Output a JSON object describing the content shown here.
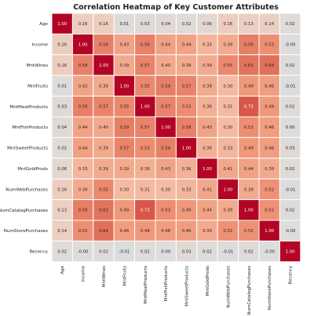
{
  "chart_data": {
    "type": "heatmap",
    "title": "Correlation Heatmap of Key Customer Attributes",
    "labels": [
      "Age",
      "Income",
      "MntWines",
      "MntFruits",
      "MntMeatProducts",
      "MntFishProducts",
      "MntSweetProducts",
      "MntGoldProds",
      "NumWebPurchases",
      "NumCatalogPurchases",
      "NumStorePurchases",
      "Recency"
    ],
    "values": [
      [
        1.0,
        0.16,
        0.16,
        0.01,
        0.03,
        0.04,
        0.02,
        0.06,
        0.16,
        0.13,
        0.14,
        0.02
      ],
      [
        0.16,
        1.0,
        0.58,
        0.43,
        0.58,
        0.44,
        0.44,
        0.33,
        0.39,
        0.59,
        0.53,
        -0.0
      ],
      [
        0.16,
        0.58,
        1.0,
        0.39,
        0.57,
        0.4,
        0.39,
        0.39,
        0.55,
        0.63,
        0.64,
        0.02
      ],
      [
        0.01,
        0.43,
        0.39,
        1.0,
        0.55,
        0.59,
        0.57,
        0.39,
        0.3,
        0.49,
        0.46,
        -0.01
      ],
      [
        0.03,
        0.58,
        0.57,
        0.55,
        1.0,
        0.57,
        0.53,
        0.36,
        0.31,
        0.73,
        0.49,
        0.02
      ],
      [
        0.04,
        0.44,
        0.4,
        0.59,
        0.57,
        1.0,
        0.58,
        0.43,
        0.3,
        0.53,
        0.46,
        0.0
      ],
      [
        0.02,
        0.44,
        0.39,
        0.57,
        0.53,
        0.58,
        1.0,
        0.36,
        0.33,
        0.49,
        0.46,
        0.03
      ],
      [
        0.06,
        0.33,
        0.39,
        0.39,
        0.36,
        0.43,
        0.36,
        1.0,
        0.41,
        0.44,
        0.39,
        0.02
      ],
      [
        0.16,
        0.39,
        0.55,
        0.3,
        0.31,
        0.3,
        0.33,
        0.41,
        1.0,
        0.39,
        0.52,
        -0.01
      ],
      [
        0.13,
        0.59,
        0.63,
        0.49,
        0.73,
        0.53,
        0.49,
        0.44,
        0.39,
        1.0,
        0.52,
        0.02
      ],
      [
        0.14,
        0.53,
        0.64,
        0.46,
        0.49,
        0.46,
        0.46,
        0.39,
        0.52,
        0.52,
        1.0,
        -0.0
      ],
      [
        0.02,
        -0.0,
        0.02,
        -0.01,
        0.02,
        0.0,
        0.03,
        0.02,
        -0.01,
        0.02,
        -0.0,
        1.0
      ]
    ],
    "value_labels": [
      [
        "1.00",
        "0.16",
        "0.16",
        "0.01",
        "0.03",
        "0.04",
        "0.02",
        "0.06",
        "0.16",
        "0.13",
        "0.14",
        "0.02"
      ],
      [
        "0.16",
        "1.00",
        "0.58",
        "0.43",
        "0.58",
        "0.44",
        "0.44",
        "0.33",
        "0.39",
        "0.59",
        "0.53",
        "-0.00"
      ],
      [
        "0.16",
        "0.58",
        "1.00",
        "0.39",
        "0.57",
        "0.40",
        "0.39",
        "0.39",
        "0.55",
        "0.63",
        "0.64",
        "0.02"
      ],
      [
        "0.01",
        "0.43",
        "0.39",
        "1.00",
        "0.55",
        "0.59",
        "0.57",
        "0.39",
        "0.30",
        "0.49",
        "0.46",
        "-0.01"
      ],
      [
        "0.03",
        "0.58",
        "0.57",
        "0.55",
        "1.00",
        "0.57",
        "0.53",
        "0.36",
        "0.31",
        "0.73",
        "0.49",
        "0.02"
      ],
      [
        "0.04",
        "0.44",
        "0.40",
        "0.59",
        "0.57",
        "1.00",
        "0.58",
        "0.43",
        "0.30",
        "0.53",
        "0.46",
        "0.00"
      ],
      [
        "0.02",
        "0.44",
        "0.39",
        "0.57",
        "0.53",
        "0.58",
        "1.00",
        "0.36",
        "0.33",
        "0.49",
        "0.46",
        "0.03"
      ],
      [
        "0.06",
        "0.33",
        "0.39",
        "0.39",
        "0.36",
        "0.43",
        "0.36",
        "1.00",
        "0.41",
        "0.44",
        "0.39",
        "0.02"
      ],
      [
        "0.16",
        "0.39",
        "0.55",
        "0.30",
        "0.31",
        "0.30",
        "0.33",
        "0.41",
        "1.00",
        "0.39",
        "0.52",
        "-0.01"
      ],
      [
        "0.13",
        "0.59",
        "0.63",
        "0.49",
        "0.73",
        "0.53",
        "0.49",
        "0.44",
        "0.39",
        "1.00",
        "0.52",
        "0.02"
      ],
      [
        "0.14",
        "0.53",
        "0.64",
        "0.46",
        "0.49",
        "0.46",
        "0.46",
        "0.39",
        "0.52",
        "0.52",
        "1.00",
        "-0.00"
      ],
      [
        "0.02",
        "-0.00",
        "0.02",
        "-0.01",
        "0.02",
        "0.00",
        "0.03",
        "0.02",
        "-0.01",
        "0.02",
        "-0.00",
        "1.00"
      ]
    ],
    "colormap": "coolwarm",
    "color_range": [
      -1,
      1
    ],
    "annotated": true,
    "grid": false,
    "legend": "none"
  }
}
